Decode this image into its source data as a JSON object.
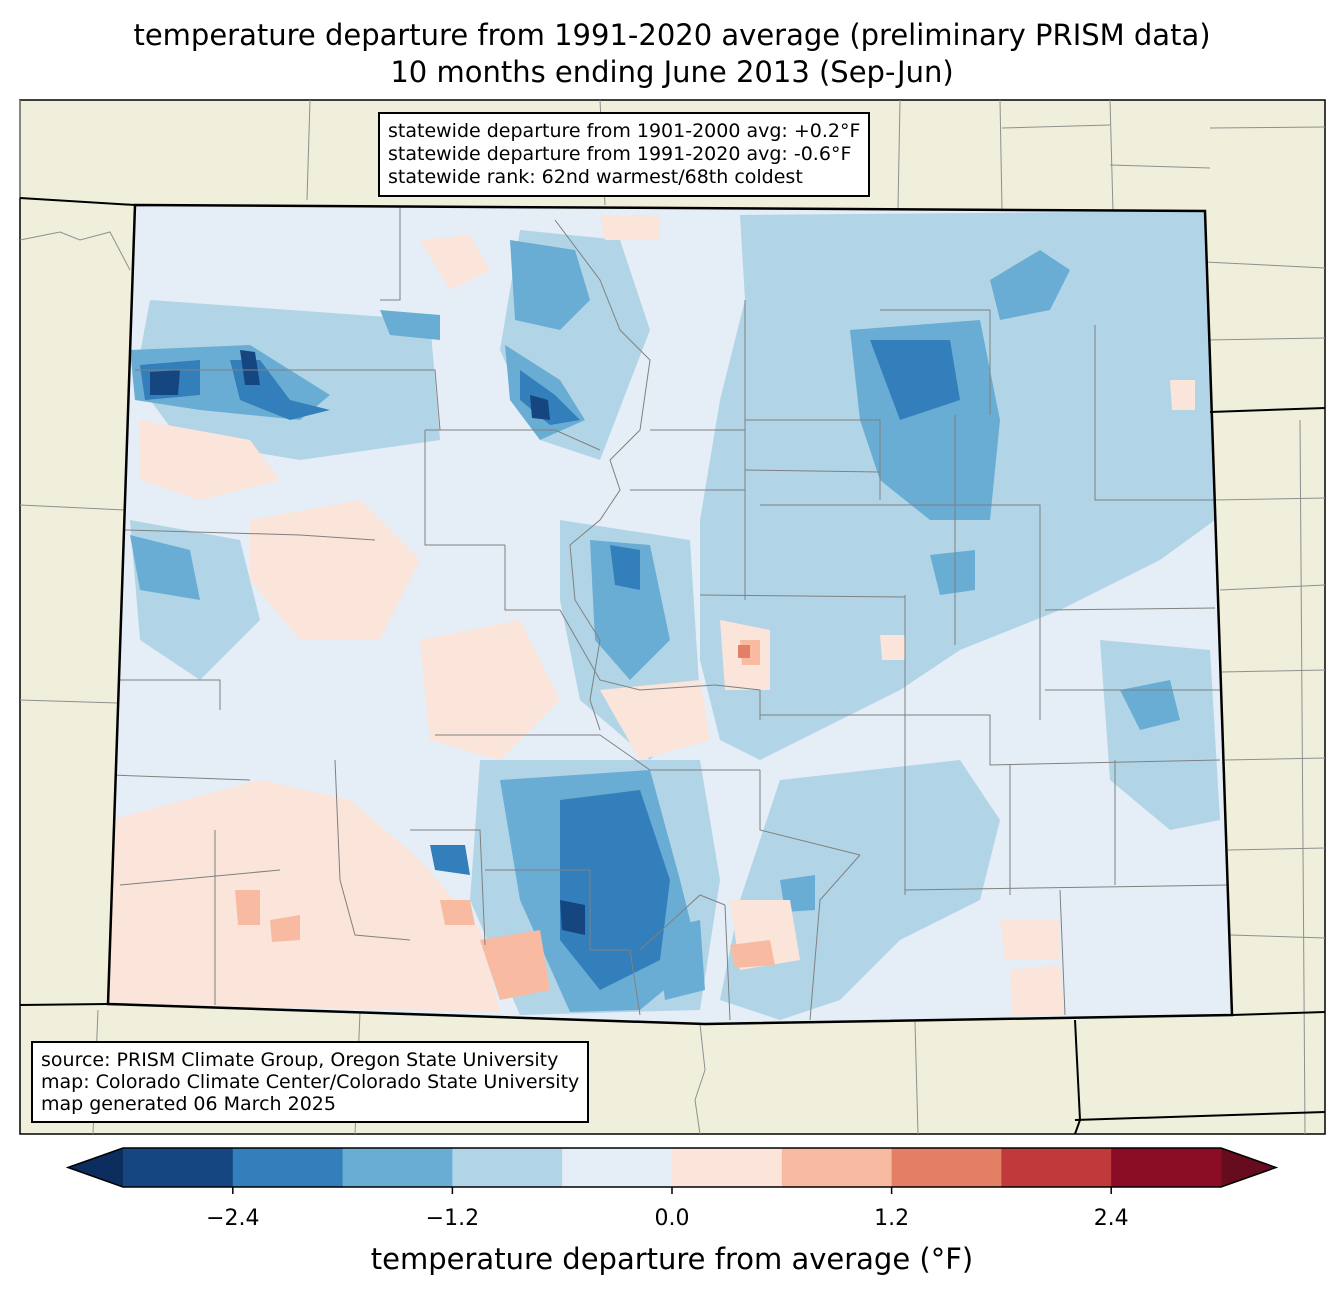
{
  "title_line1": "temperature departure from 1991-2020 average (preliminary PRISM data)",
  "title_line2": "10 months ending June 2013 (Sep-Jun)",
  "stats_box": {
    "line1": "statewide departure from 1901-2000 avg: +0.2°F",
    "line2": "statewide departure from 1991-2020 avg: -0.6°F",
    "line3": "statewide rank: 62nd warmest/68th coldest"
  },
  "source_box": {
    "line1": "source: PRISM Climate Group, Oregon State University",
    "line2": "map: Colorado Climate Center/Colorado State University",
    "line3": "map generated 06 March 2025"
  },
  "colorbar": {
    "label": "temperature departure from average (°F)",
    "ticks": [
      "−2.4",
      "−1.2",
      "0.0",
      "1.2",
      "2.4"
    ],
    "tick_values": [
      -2.4,
      -1.2,
      0.0,
      1.2,
      2.4
    ],
    "min": -3.0,
    "max": 3.0,
    "bins": [
      {
        "from": -3.0,
        "to": -2.4,
        "color": "#15467f"
      },
      {
        "from": -2.4,
        "to": -1.8,
        "color": "#327fbb"
      },
      {
        "from": -1.8,
        "to": -1.2,
        "color": "#6aadd4"
      },
      {
        "from": -1.2,
        "to": -0.6,
        "color": "#b1d5e7"
      },
      {
        "from": -0.6,
        "to": 0.0,
        "color": "#e5eef6"
      },
      {
        "from": 0.0,
        "to": 0.6,
        "color": "#fbe4d9"
      },
      {
        "from": 0.6,
        "to": 1.2,
        "color": "#f8bba1"
      },
      {
        "from": 1.2,
        "to": 1.8,
        "color": "#e37f65"
      },
      {
        "from": 1.8,
        "to": 2.4,
        "color": "#c03a3c"
      },
      {
        "from": 2.4,
        "to": 3.0,
        "color": "#8a0c25"
      }
    ],
    "under_color": "#0b2e5f",
    "over_color": "#670b1f"
  },
  "colors": {
    "land_outside": "#efefdc",
    "state_border": "#000000",
    "county_line": "#808080"
  }
}
